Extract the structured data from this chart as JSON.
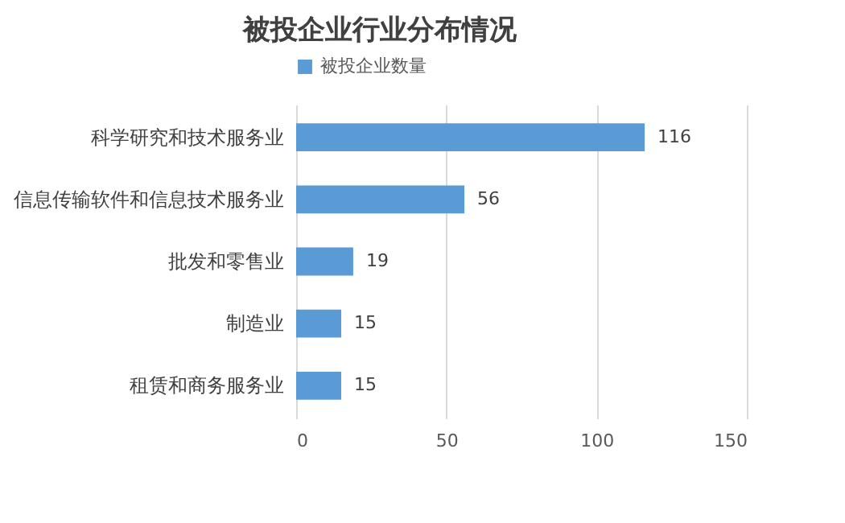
{
  "chart_data": {
    "type": "bar",
    "orientation": "horizontal",
    "title": "被投企业行业分布情况",
    "categories": [
      "科学研究和技术服务业",
      "信息传输软件和信息技术服务业",
      "批发和零售业",
      "制造业",
      "租赁和商务服务业"
    ],
    "series": [
      {
        "name": "被投企业数量",
        "color": "#5b9bd5",
        "values": [
          116,
          56,
          19,
          15,
          15
        ]
      }
    ],
    "xlim": [
      0,
      150
    ],
    "xticks": [
      0,
      50,
      100,
      150
    ],
    "grid": "x",
    "legend": "top",
    "data_labels": true
  }
}
